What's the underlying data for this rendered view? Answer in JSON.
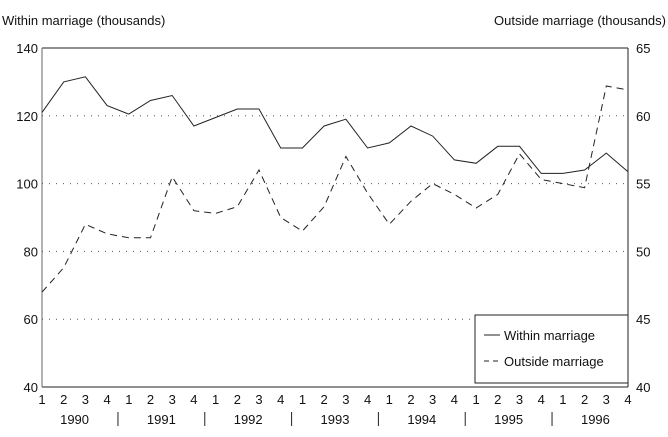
{
  "chart_data": {
    "type": "line",
    "left_axis_title": "Within marriage (thousands)",
    "right_axis_title": "Outside marriage (thousands)",
    "left_ylim": [
      40,
      140
    ],
    "left_ticks": [
      40,
      60,
      80,
      100,
      120,
      140
    ],
    "right_ylim": [
      40,
      65
    ],
    "right_ticks": [
      40,
      45,
      50,
      55,
      60,
      65
    ],
    "grid": true,
    "legend_placement": "bottom-right",
    "quarter_labels": [
      "1",
      "2",
      "3",
      "4",
      "1",
      "2",
      "3",
      "4",
      "1",
      "2",
      "3",
      "4",
      "1",
      "2",
      "3",
      "4",
      "1",
      "2",
      "3",
      "4",
      "1",
      "2",
      "3",
      "4",
      "1",
      "2",
      "3",
      "4"
    ],
    "years": [
      "1990",
      "1991",
      "1992",
      "1993",
      "1994",
      "1995",
      "1996"
    ],
    "series": [
      {
        "name": "Within marriage",
        "axis": "left",
        "style": "solid",
        "values": [
          121,
          130,
          131.5,
          123,
          120.5,
          124.5,
          126,
          117,
          119.5,
          122,
          122,
          110.5,
          110.5,
          117,
          119,
          110.5,
          112,
          117,
          114,
          107,
          106,
          111,
          111,
          103,
          103,
          104,
          109,
          103.5
        ]
      },
      {
        "name": "Outside marriage",
        "axis": "right",
        "style": "dashed",
        "values": [
          47,
          48.8,
          52,
          51.3,
          51,
          51,
          55.5,
          53,
          52.8,
          53.3,
          56,
          52.5,
          51.5,
          53.3,
          57,
          54.3,
          52,
          53.7,
          55,
          54.2,
          53.2,
          54.2,
          57.2,
          55.3,
          55,
          54.7,
          62.2,
          61.9
        ]
      }
    ]
  }
}
